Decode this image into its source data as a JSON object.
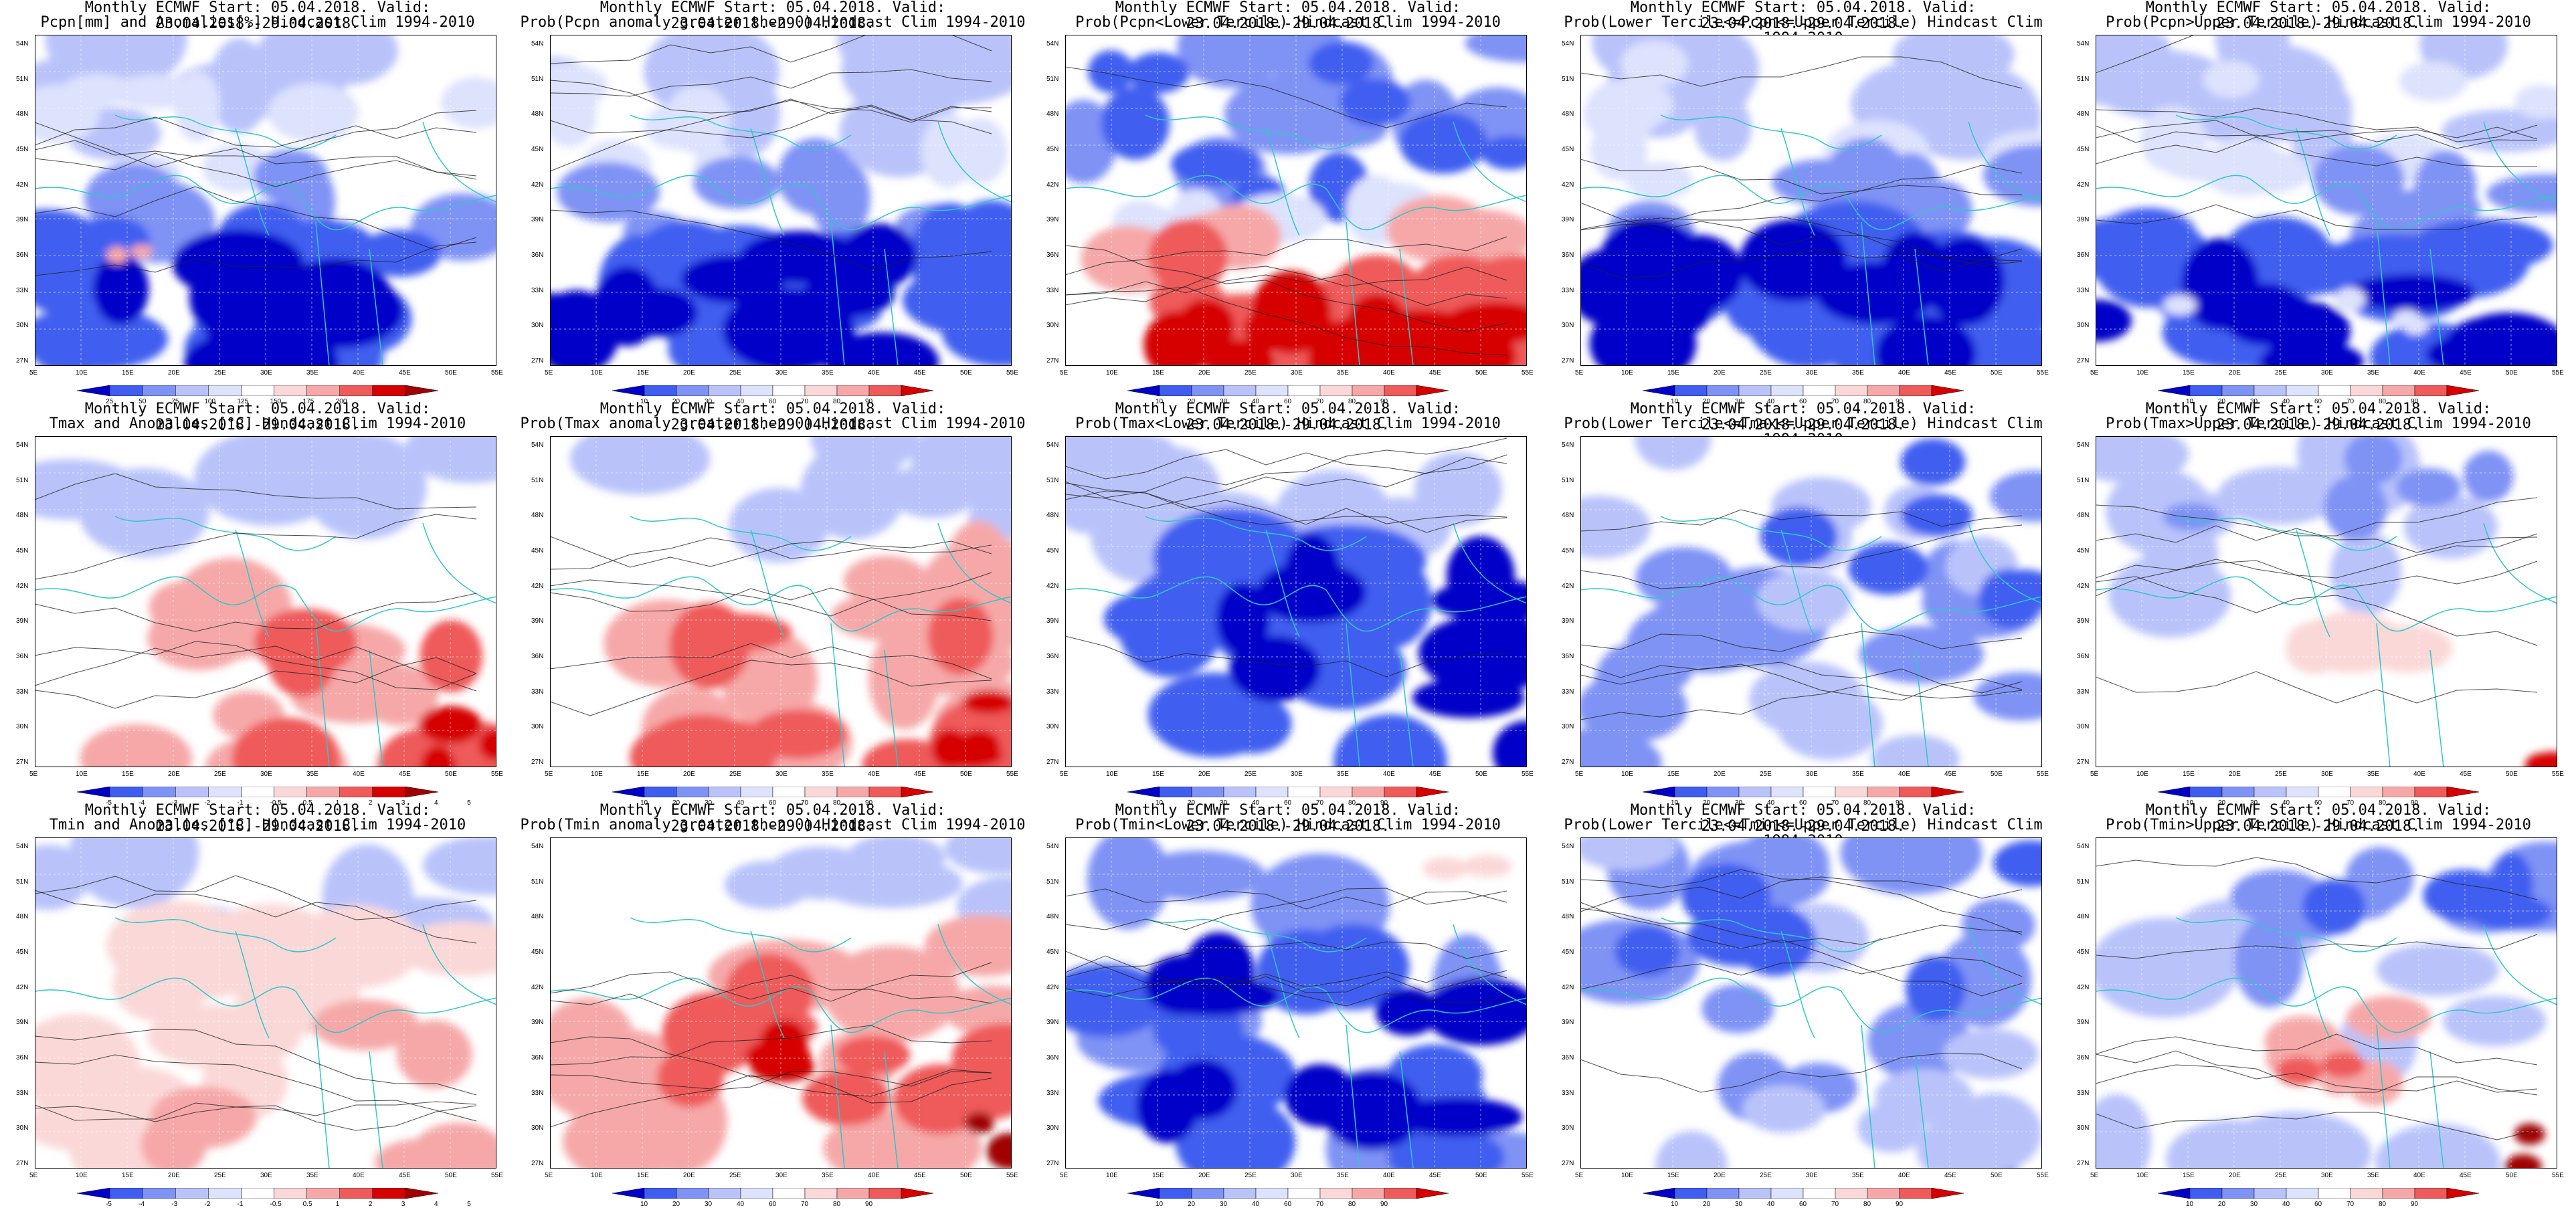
{
  "latitudes": [
    "54N",
    "51N",
    "48N",
    "45N",
    "42N",
    "39N",
    "36N",
    "33N",
    "30N",
    "27N"
  ],
  "longitudes": [
    "5E",
    "10E",
    "15E",
    "20E",
    "25E",
    "30E",
    "35E",
    "40E",
    "45E",
    "50E",
    "55E"
  ],
  "panels": [
    {
      "t1": "Monthly ECMWF Start: 05.04.2018. Valid: 23.04.2018.-29.04.2018.",
      "t2": "Pcpn[mm] and Anomalies[%] Hindcast Clim 1994-2010",
      "scheme": "anom",
      "labels": [
        "25",
        "50",
        "75",
        "100",
        "125",
        "150",
        "175",
        "200"
      ]
    },
    {
      "t1": "Monthly ECMWF Start: 05.04.2018. Valid: 23.04.2018.-29.04.2018.",
      "t2": "Prob(Pcpn anomaly greater then 0) Hindcast Clim 1994-2010",
      "scheme": "prob",
      "labels": [
        "10",
        "20",
        "30",
        "40",
        "60",
        "70",
        "80",
        "90"
      ]
    },
    {
      "t1": "Monthly ECMWF Start: 05.04.2018. Valid: 23.04.2018.-29.04.2018.",
      "t2": "Prob(Pcpn<Lower Tercile) Hindcast Clim 1994-2010",
      "scheme": "prob",
      "labels": [
        "10",
        "20",
        "30",
        "40",
        "60",
        "70",
        "80",
        "90"
      ]
    },
    {
      "t1": "Monthly ECMWF Start: 05.04.2018. Valid: 23.04.2018.-29.04.2018.",
      "t2": "Prob(Lower Tercile<=Pcpn<=Upper Tercile) Hindcast Clim 1994-2010",
      "scheme": "prob",
      "labels": [
        "10",
        "20",
        "30",
        "40",
        "60",
        "70",
        "80",
        "90"
      ]
    },
    {
      "t1": "Monthly ECMWF Start: 05.04.2018. Valid: 23.04.2018.-29.04.2018.",
      "t2": "Prob(Pcpn>Upper Tercile) Hindcast Clim 1994-2010",
      "scheme": "prob",
      "labels": [
        "10",
        "20",
        "30",
        "40",
        "60",
        "70",
        "80",
        "90"
      ]
    },
    {
      "t1": "Monthly ECMWF Start: 05.04.2018. Valid: 23.04.2018.-29.04.2018.",
      "t2": "Tmax and Anomalies [°C] Hindcast Clim 1994-2010",
      "scheme": "anom",
      "labels": [
        "-5",
        "-4",
        "-3",
        "-2",
        "-1",
        "-0.5",
        "0.5",
        "1",
        "2",
        "3",
        "4",
        "5"
      ]
    },
    {
      "t1": "Monthly ECMWF Start: 05.04.2018. Valid: 23.04.2018.-29.04.2018.",
      "t2": "Prob(Tmax anomaly greater then 0) Hindcast Clim 1994-2010",
      "scheme": "prob",
      "labels": [
        "10",
        "20",
        "30",
        "40",
        "60",
        "70",
        "80",
        "90"
      ]
    },
    {
      "t1": "Monthly ECMWF Start: 05.04.2018. Valid: 23.04.2018.-29.04.2018.",
      "t2": "Prob(Tmax<Lower Tercile) Hindcast Clim 1994-2010",
      "scheme": "prob",
      "labels": [
        "10",
        "20",
        "30",
        "40",
        "60",
        "70",
        "80",
        "90"
      ]
    },
    {
      "t1": "Monthly ECMWF Start: 05.04.2018. Valid: 23.04.2018.-29.04.2018.",
      "t2": "Prob(Lower Tercile<=Tmax<=Upper Tercile) Hindcast Clim 1994-2010",
      "scheme": "prob",
      "labels": [
        "10",
        "20",
        "30",
        "40",
        "60",
        "70",
        "80",
        "90"
      ]
    },
    {
      "t1": "Monthly ECMWF Start: 05.04.2018. Valid: 23.04.2018.-29.04.2018.",
      "t2": "Prob(Tmax>Upper Tercile) Hindcast Clim 1994-2010",
      "scheme": "prob",
      "labels": [
        "10",
        "20",
        "30",
        "40",
        "60",
        "70",
        "80",
        "90"
      ]
    },
    {
      "t1": "Monthly ECMWF Start: 05.04.2018. Valid: 23.04.2018.-29.04.2018.",
      "t2": "Tmin and Anomalies [°C] Hindcast Clim 1994-2010",
      "scheme": "anom",
      "labels": [
        "-5",
        "-4",
        "-3",
        "-2",
        "-1",
        "-0.5",
        "0.5",
        "1",
        "2",
        "3",
        "4",
        "5"
      ]
    },
    {
      "t1": "Monthly ECMWF Start: 05.04.2018. Valid: 23.04.2018.-29.04.2018.",
      "t2": "Prob(Tmin anomaly greater then 0) Hindcast Clim 1994-2010",
      "scheme": "prob",
      "labels": [
        "10",
        "20",
        "30",
        "40",
        "60",
        "70",
        "80",
        "90"
      ]
    },
    {
      "t1": "Monthly ECMWF Start: 05.04.2018. Valid: 23.04.2018.-29.04.2018.",
      "t2": "Prob(Tmin<Lower Tercile) Hindcast Clim 1994-2010",
      "scheme": "prob",
      "labels": [
        "10",
        "20",
        "30",
        "40",
        "60",
        "70",
        "80",
        "90"
      ]
    },
    {
      "t1": "Monthly ECMWF Start: 05.04.2018. Valid: 23.04.2018.-29.04.2018.",
      "t2": "Prob(Lower Tercile<=Tmin<=Upper Tercile) Hindcast Clim 1994-2010",
      "scheme": "prob",
      "labels": [
        "10",
        "20",
        "30",
        "40",
        "60",
        "70",
        "80",
        "90"
      ]
    },
    {
      "t1": "Monthly ECMWF Start: 05.04.2018. Valid: 23.04.2018.-29.04.2018.",
      "t2": "Prob(Tmin>Upper Tercile) Hindcast Clim 1994-2010",
      "scheme": "prob",
      "labels": [
        "10",
        "20",
        "30",
        "40",
        "60",
        "70",
        "80",
        "90"
      ]
    }
  ],
  "colors": {
    "deep_blue": "#0000c8",
    "blue": "#3f5ef0",
    "mid_blue": "#7f93f5",
    "light_blue": "#b9c3fa",
    "pale_blue": "#dde2fd",
    "white": "#ffffff",
    "pale_red": "#fbd8d8",
    "light_red": "#f6a8a8",
    "red": "#ef5a5a",
    "deep_red": "#d60000",
    "dark_red": "#a00000",
    "coast": "#2ec8c8",
    "contour": "#202020"
  }
}
